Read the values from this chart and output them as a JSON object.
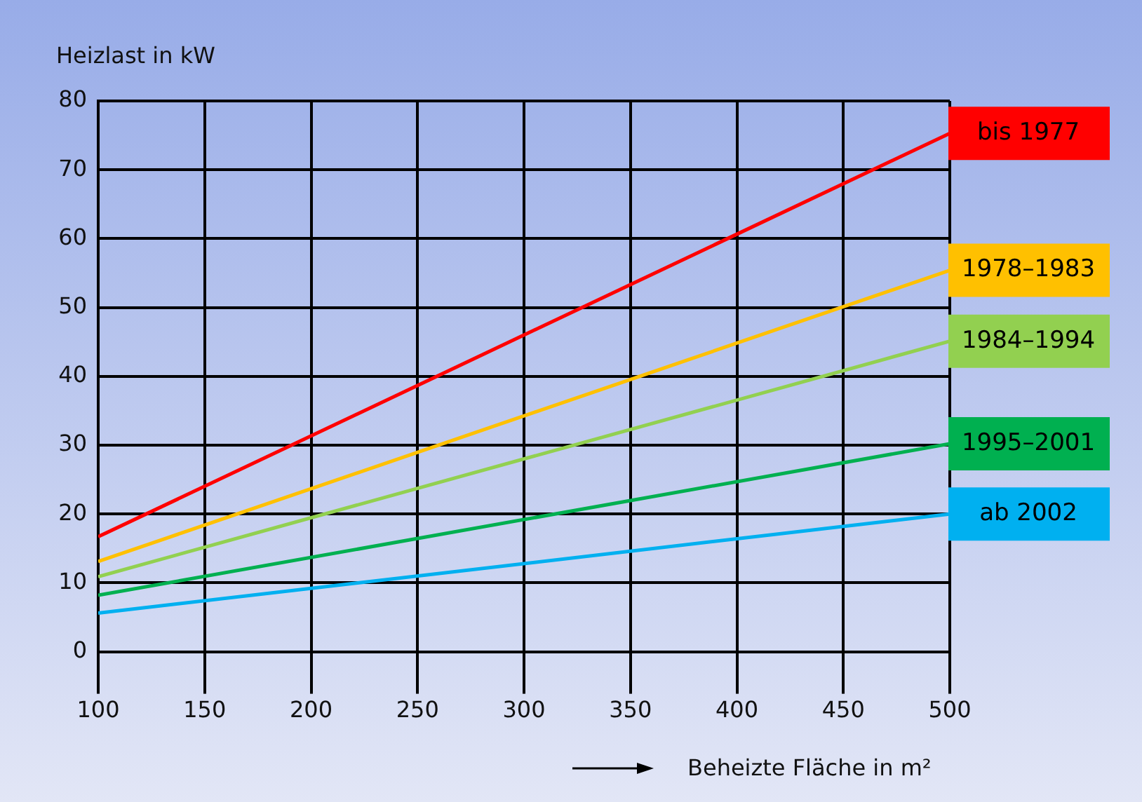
{
  "chart_data": {
    "type": "line",
    "ylabel": "Heizlast in kW",
    "xlabel": "Beheizte Fläche in m²",
    "x": [
      100,
      500
    ],
    "xlim": [
      100,
      500
    ],
    "xticks": [
      100,
      150,
      200,
      250,
      300,
      350,
      400,
      450,
      500
    ],
    "ylim": [
      0,
      80
    ],
    "yticks": [
      0,
      10,
      20,
      30,
      40,
      50,
      60,
      70,
      80
    ],
    "grid": true,
    "marker": "none",
    "line_style": "solid",
    "series": [
      {
        "name": "bis 1977",
        "color": "#ff0000",
        "values": [
          16.7,
          75.3
        ]
      },
      {
        "name": "1978–1983",
        "color": "#ffc000",
        "values": [
          13.1,
          55.4
        ]
      },
      {
        "name": "1984–1994",
        "color": "#92d050",
        "values": [
          10.9,
          45.1
        ]
      },
      {
        "name": "1995–2001",
        "color": "#00b050",
        "values": [
          8.2,
          30.2
        ]
      },
      {
        "name": "ab 2002",
        "color": "#00b0f0",
        "values": [
          5.6,
          20
        ]
      }
    ]
  }
}
